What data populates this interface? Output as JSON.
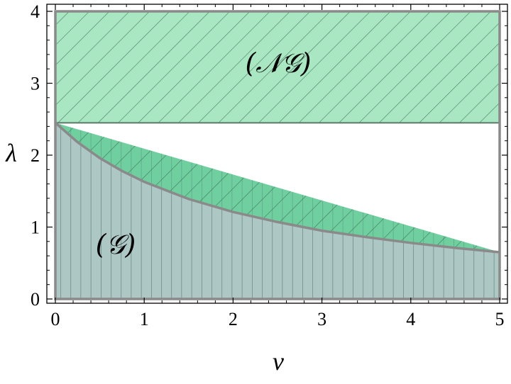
{
  "chart_data": {
    "type": "area",
    "xlabel": "ν",
    "ylabel": "λ",
    "xlim": [
      0,
      5
    ],
    "ylim": [
      0,
      4
    ],
    "x_ticks": [
      "0",
      "1",
      "2",
      "3",
      "4",
      "5"
    ],
    "y_ticks": [
      "0",
      "1",
      "2",
      "3",
      "4"
    ],
    "curve": {
      "x": [
        0,
        0.25,
        0.5,
        0.75,
        1,
        1.5,
        2,
        2.5,
        3,
        3.5,
        4,
        4.5,
        5
      ],
      "y": [
        2.45,
        2.18,
        1.96,
        1.78,
        1.63,
        1.39,
        1.21,
        1.07,
        0.95,
        0.86,
        0.78,
        0.71,
        0.65
      ]
    },
    "threshold": 2.45,
    "regions": [
      {
        "label": "(𝒩𝒢)",
        "fill": "#3fbf7f",
        "hatch": "diagonal"
      },
      {
        "label": "(𝒢)",
        "fill": "#7fa9a5",
        "hatch": "vertical"
      }
    ],
    "colors": {
      "boundary": "#8a8a8a",
      "hatch": "#2d5a46",
      "frame": "#000000"
    }
  }
}
